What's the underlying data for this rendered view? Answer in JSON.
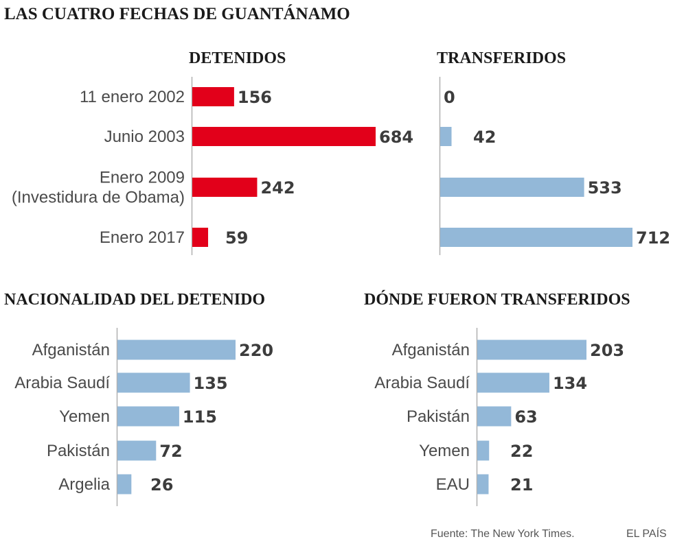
{
  "title": "LAS CUATRO FECHAS DE GUANTÁNAMO",
  "colors": {
    "red": "#e2001a",
    "blue": "#93b8d8",
    "axis": "#b0b0b0",
    "label": "#4a4a4a",
    "value": "#3c3c3c",
    "title": "#1a1a1a"
  },
  "chart_data": [
    {
      "type": "bar",
      "orientation": "horizontal",
      "title": "DETENIDOS",
      "categories": [
        [
          "11 enero 2002"
        ],
        [
          "Junio 2003"
        ],
        [
          "Enero 2009",
          "(Investidura de Obama)"
        ],
        [
          "Enero 2017"
        ]
      ],
      "values": [
        156,
        684,
        242,
        59
      ],
      "xlim": [
        0,
        684
      ],
      "color": "red"
    },
    {
      "type": "bar",
      "orientation": "horizontal",
      "title": "TRANSFERIDOS",
      "categories": [
        [
          "11 enero 2002"
        ],
        [
          "Junio 2003"
        ],
        [
          "Enero 2009",
          "(Investidura de Obama)"
        ],
        [
          "Enero 2017"
        ]
      ],
      "values": [
        0,
        42,
        533,
        712
      ],
      "xlim": [
        0,
        712
      ],
      "color": "blue"
    },
    {
      "type": "bar",
      "orientation": "horizontal",
      "title": "NACIONALIDAD DEL DETENIDO",
      "categories": [
        [
          "Afganistán"
        ],
        [
          "Arabia Saudí"
        ],
        [
          "Yemen"
        ],
        [
          "Pakistán"
        ],
        [
          "Argelia"
        ]
      ],
      "values": [
        220,
        135,
        115,
        72,
        26
      ],
      "xlim": [
        0,
        220
      ],
      "color": "blue"
    },
    {
      "type": "bar",
      "orientation": "horizontal",
      "title": "DÓNDE FUERON TRANSFERIDOS",
      "categories": [
        [
          "Afganistán"
        ],
        [
          "Arabia Saudí"
        ],
        [
          "Pakistán"
        ],
        [
          "Yemen"
        ],
        [
          "EAU"
        ]
      ],
      "values": [
        203,
        134,
        63,
        22,
        21
      ],
      "xlim": [
        0,
        203
      ],
      "color": "blue"
    }
  ],
  "footer": {
    "source": "Fuente: The New York Times.",
    "brand": "EL PAÍS"
  }
}
